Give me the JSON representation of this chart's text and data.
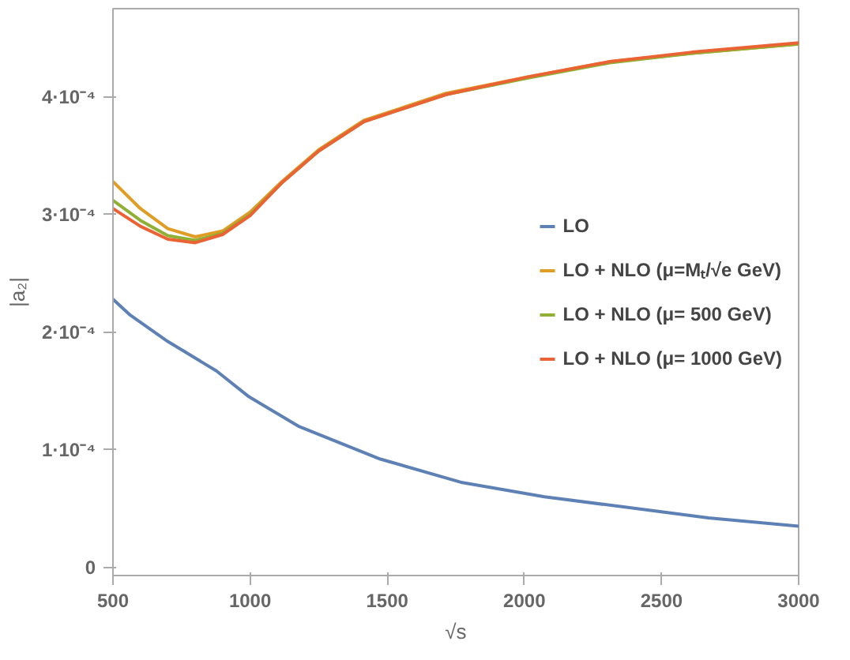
{
  "chart_data": {
    "type": "line",
    "xlabel": "√s",
    "ylabel": "|a₂|",
    "xlim": [
      500,
      3000
    ],
    "ylim": [
      -7e-06,
      0.000475
    ],
    "xticks": [
      500,
      1000,
      1500,
      2000,
      2500,
      3000
    ],
    "yticks": [
      0,
      {
        "value": 0.0001,
        "label": "1·10⁻⁴"
      },
      {
        "value": 0.0002,
        "label": "2·10⁻⁴"
      },
      {
        "value": 0.0003,
        "label": "3·10⁻⁴"
      },
      {
        "value": 0.0004,
        "label": "4·10⁻⁴"
      }
    ],
    "grid": false,
    "legend": "right",
    "line_style": "solid",
    "marker": "none",
    "series": [
      {
        "name": "LO",
        "color": "#5e81b5",
        "x": [
          500,
          560,
          700,
          877,
          996,
          1176,
          1475,
          1774,
          2073,
          2372,
          2671,
          3000
        ],
        "values": [
          0.000228,
          0.000215,
          0.000192,
          0.000167,
          0.000145,
          0.00012,
          9.2e-05,
          7.2e-05,
          6e-05,
          5.1e-05,
          4.2e-05,
          3.5e-05
        ]
      },
      {
        "name": "LO + NLO (μ=Mₜ/√e GeV)",
        "color": "#e19c24",
        "x": [
          500,
          600,
          700,
          800,
          900,
          1000,
          1116,
          1250,
          1415,
          1714,
          2013,
          2312,
          2611,
          3000
        ],
        "values": [
          0.000328,
          0.000305,
          0.000288,
          0.000281,
          0.000286,
          0.000302,
          0.000328,
          0.000355,
          0.00038,
          0.000403,
          0.000417,
          0.00043,
          0.000437,
          0.000445
        ]
      },
      {
        "name": "LO + NLO (μ= 500 GeV)",
        "color": "#8fb032",
        "x": [
          500,
          600,
          700,
          800,
          900,
          1000,
          1116,
          1250,
          1415,
          1714,
          2013,
          2312,
          2611,
          3000
        ],
        "values": [
          0.000312,
          0.000295,
          0.000282,
          0.000278,
          0.000284,
          0.0003,
          0.000327,
          0.000354,
          0.000379,
          0.000402,
          0.000416,
          0.000429,
          0.000437,
          0.000445
        ]
      },
      {
        "name": "LO + NLO (μ= 1000 GeV)",
        "color": "#eb6235",
        "x": [
          500,
          600,
          700,
          800,
          900,
          1000,
          1116,
          1250,
          1415,
          1714,
          2013,
          2312,
          2611,
          3000
        ],
        "values": [
          0.000305,
          0.00029,
          0.000279,
          0.000276,
          0.000283,
          0.000299,
          0.000327,
          0.000354,
          0.000379,
          0.000402,
          0.000417,
          0.00043,
          0.000438,
          0.000446
        ]
      }
    ]
  }
}
